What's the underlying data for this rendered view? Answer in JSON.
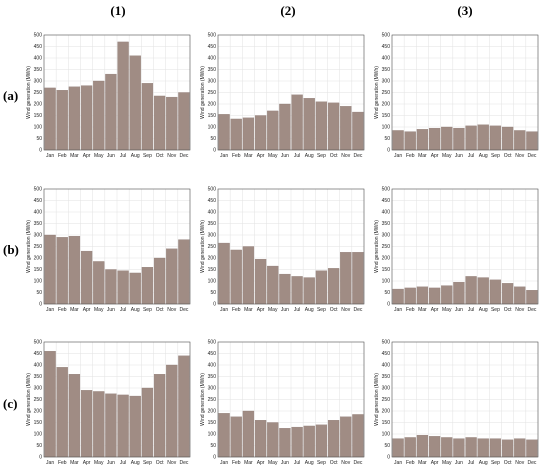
{
  "column_labels": [
    "(1)",
    "(2)",
    "(3)"
  ],
  "row_labels": [
    "(a)",
    "(b)",
    "(c)"
  ],
  "colors": {
    "bar_fill": "#a08c84",
    "bar_stroke": "#8a7670"
  },
  "chart_data": [
    {
      "type": "bar",
      "title": "",
      "xlabel": "",
      "ylabel": "Wind generation (MWh)",
      "ylim": [
        0,
        500
      ],
      "yticks": [
        0,
        50,
        100,
        150,
        200,
        250,
        300,
        350,
        400,
        450,
        500
      ],
      "grid": true,
      "categories": [
        "Jan",
        "Feb",
        "Mar",
        "Apr",
        "May",
        "Jun",
        "Jul",
        "Aug",
        "Sep",
        "Oct",
        "Nov",
        "Dec"
      ],
      "values": [
        270,
        260,
        275,
        280,
        300,
        330,
        470,
        410,
        290,
        235,
        230,
        250
      ]
    },
    {
      "type": "bar",
      "title": "",
      "xlabel": "",
      "ylabel": "Wind generation (MWh)",
      "ylim": [
        0,
        500
      ],
      "yticks": [
        0,
        50,
        100,
        150,
        200,
        250,
        300,
        350,
        400,
        450,
        500
      ],
      "grid": true,
      "categories": [
        "Jan",
        "Feb",
        "Mar",
        "Apr",
        "May",
        "Jun",
        "Jul",
        "Aug",
        "Sep",
        "Oct",
        "Nov",
        "Dec"
      ],
      "values": [
        155,
        135,
        140,
        150,
        170,
        200,
        240,
        225,
        210,
        205,
        190,
        165
      ]
    },
    {
      "type": "bar",
      "title": "",
      "xlabel": "",
      "ylabel": "Wind generation (MWh)",
      "ylim": [
        0,
        500
      ],
      "yticks": [
        0,
        50,
        100,
        150,
        200,
        250,
        300,
        350,
        400,
        450,
        500
      ],
      "grid": true,
      "categories": [
        "Jan",
        "Feb",
        "Mar",
        "Apr",
        "May",
        "Jun",
        "Jul",
        "Aug",
        "Sep",
        "Oct",
        "Nov",
        "Dec"
      ],
      "values": [
        85,
        80,
        90,
        95,
        100,
        95,
        105,
        110,
        105,
        100,
        85,
        80
      ]
    },
    {
      "type": "bar",
      "title": "",
      "xlabel": "",
      "ylabel": "Wind generation (MWh)",
      "ylim": [
        0,
        500
      ],
      "yticks": [
        0,
        50,
        100,
        150,
        200,
        250,
        300,
        350,
        400,
        450,
        500
      ],
      "grid": true,
      "categories": [
        "Jan",
        "Feb",
        "Mar",
        "Apr",
        "May",
        "Jun",
        "Jul",
        "Aug",
        "Sep",
        "Oct",
        "Nov",
        "Dec"
      ],
      "values": [
        300,
        290,
        295,
        230,
        185,
        150,
        145,
        135,
        160,
        200,
        240,
        280
      ]
    },
    {
      "type": "bar",
      "title": "",
      "xlabel": "",
      "ylabel": "Wind generation (MWh)",
      "ylim": [
        0,
        500
      ],
      "yticks": [
        0,
        50,
        100,
        150,
        200,
        250,
        300,
        350,
        400,
        450,
        500
      ],
      "grid": true,
      "categories": [
        "Jan",
        "Feb",
        "Mar",
        "Apr",
        "May",
        "Jun",
        "Jul",
        "Aug",
        "Sep",
        "Oct",
        "Nov",
        "Dec"
      ],
      "values": [
        265,
        235,
        250,
        195,
        165,
        130,
        120,
        115,
        145,
        155,
        225,
        225
      ]
    },
    {
      "type": "bar",
      "title": "",
      "xlabel": "",
      "ylabel": "Wind generation (MWh)",
      "ylim": [
        0,
        500
      ],
      "yticks": [
        0,
        50,
        100,
        150,
        200,
        250,
        300,
        350,
        400,
        450,
        500
      ],
      "grid": true,
      "categories": [
        "Jan",
        "Feb",
        "Mar",
        "Apr",
        "May",
        "Jun",
        "Jul",
        "Aug",
        "Sep",
        "Oct",
        "Nov",
        "Dec"
      ],
      "values": [
        65,
        70,
        75,
        70,
        80,
        95,
        120,
        115,
        105,
        90,
        75,
        60
      ]
    },
    {
      "type": "bar",
      "title": "",
      "xlabel": "",
      "ylabel": "Wind generation (MWh)",
      "ylim": [
        0,
        500
      ],
      "yticks": [
        0,
        50,
        100,
        150,
        200,
        250,
        300,
        350,
        400,
        450,
        500
      ],
      "grid": true,
      "categories": [
        "Jan",
        "Feb",
        "Mar",
        "Apr",
        "May",
        "Jun",
        "Jul",
        "Aug",
        "Sep",
        "Oct",
        "Nov",
        "Dec"
      ],
      "values": [
        460,
        390,
        360,
        290,
        285,
        275,
        270,
        265,
        300,
        360,
        400,
        440
      ]
    },
    {
      "type": "bar",
      "title": "",
      "xlabel": "",
      "ylabel": "Wind generation (MWh)",
      "ylim": [
        0,
        500
      ],
      "yticks": [
        0,
        50,
        100,
        150,
        200,
        250,
        300,
        350,
        400,
        450,
        500
      ],
      "grid": true,
      "categories": [
        "Jan",
        "Feb",
        "Mar",
        "Apr",
        "May",
        "Jun",
        "Jul",
        "Aug",
        "Sep",
        "Oct",
        "Nov",
        "Dec"
      ],
      "values": [
        190,
        175,
        200,
        160,
        150,
        125,
        130,
        135,
        140,
        160,
        175,
        185
      ]
    },
    {
      "type": "bar",
      "title": "",
      "xlabel": "",
      "ylabel": "Wind generation (MWh)",
      "ylim": [
        0,
        500
      ],
      "yticks": [
        0,
        50,
        100,
        150,
        200,
        250,
        300,
        350,
        400,
        450,
        500
      ],
      "grid": true,
      "categories": [
        "Jan",
        "Feb",
        "Mar",
        "Apr",
        "May",
        "Jun",
        "Jul",
        "Aug",
        "Sep",
        "Oct",
        "Nov",
        "Dec"
      ],
      "values": [
        80,
        85,
        95,
        90,
        85,
        80,
        85,
        80,
        80,
        75,
        80,
        75
      ]
    }
  ]
}
